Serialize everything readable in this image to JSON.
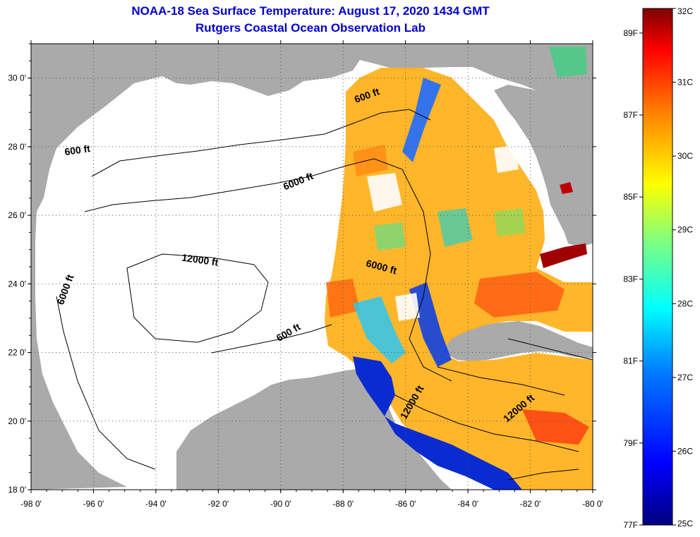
{
  "header": {
    "title": "NOAA-18 Sea Surface Temperature:  August 17, 2020 1434 GMT",
    "subtitle": "Rutgers Coastal Ocean Observation Lab"
  },
  "map": {
    "region": "Gulf of Mexico",
    "lon_range": [
      -98,
      -80
    ],
    "lat_range": [
      18,
      31
    ],
    "x_ticks": [
      "-98 0'",
      "-96 0'",
      "-94 0'",
      "-92 0'",
      "-90 0'",
      "-88 0'",
      "-86 0'",
      "-84 0'",
      "-82 0'",
      "-80 0'"
    ],
    "y_ticks": [
      "18 0'",
      "20 0'",
      "22 0'",
      "24 0'",
      "26 0'",
      "28 0'",
      "30 0'"
    ],
    "grid": "dotted",
    "land_color": "#aaaaaa",
    "no_data_color": "#ffffff",
    "contour_labels": [
      {
        "text": "600 ft",
        "lon": -96.5,
        "lat": 27.8,
        "rot": -8
      },
      {
        "text": "6000 ft",
        "lon": -89.4,
        "lat": 26.9,
        "rot": -22
      },
      {
        "text": "600 ft",
        "lon": -87.2,
        "lat": 29.4,
        "rot": -20
      },
      {
        "text": "12000 ft",
        "lon": -92.6,
        "lat": 24.6,
        "rot": 8
      },
      {
        "text": "6000 ft",
        "lon": -96.8,
        "lat": 23.8,
        "rot": -70
      },
      {
        "text": "6000 ft",
        "lon": -86.8,
        "lat": 24.4,
        "rot": 15
      },
      {
        "text": "600 ft",
        "lon": -89.7,
        "lat": 22.5,
        "rot": -30
      },
      {
        "text": "12000 ft",
        "lon": -85.7,
        "lat": 20.5,
        "rot": -60
      },
      {
        "text": "12000 ft",
        "lon": -82.3,
        "lat": 20.3,
        "rot": -40
      }
    ]
  },
  "colorbar": {
    "celsius_labels": [
      "32C",
      "31C",
      "30C",
      "29C",
      "28C",
      "27C",
      "26C",
      "25C"
    ],
    "fahrenheit_labels": [
      "89F",
      "87F",
      "85F",
      "83F",
      "81F",
      "79F",
      "77F"
    ],
    "celsius_range": [
      25,
      32
    ],
    "colors": [
      "#00007f",
      "#0000ff",
      "#007fff",
      "#00ffff",
      "#7fff7f",
      "#ffff00",
      "#ff7f00",
      "#ff0000",
      "#7f0000"
    ]
  }
}
